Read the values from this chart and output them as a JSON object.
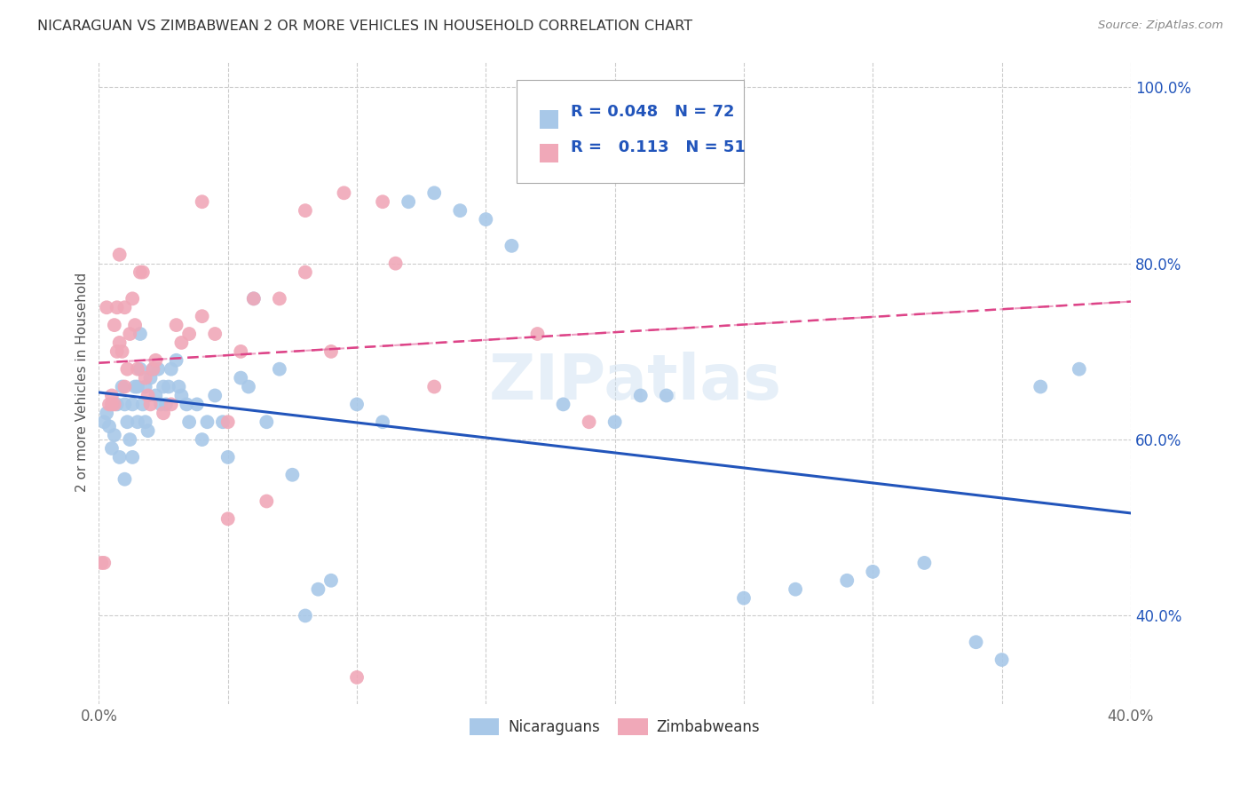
{
  "title": "NICARAGUAN VS ZIMBABWEAN 2 OR MORE VEHICLES IN HOUSEHOLD CORRELATION CHART",
  "source": "Source: ZipAtlas.com",
  "ylabel": "2 or more Vehicles in Household",
  "xlim": [
    0.0,
    0.4
  ],
  "ylim": [
    0.3,
    1.03
  ],
  "xtick_positions": [
    0.0,
    0.05,
    0.1,
    0.15,
    0.2,
    0.25,
    0.3,
    0.35,
    0.4
  ],
  "xtick_labels": [
    "0.0%",
    "",
    "",
    "",
    "",
    "",
    "",
    "",
    "40.0%"
  ],
  "ytick_positions": [
    0.4,
    0.6,
    0.8,
    1.0
  ],
  "ytick_labels": [
    "40.0%",
    "60.0%",
    "80.0%",
    "100.0%"
  ],
  "blue_R": 0.048,
  "blue_N": 72,
  "pink_R": 0.113,
  "pink_N": 51,
  "blue_color": "#a8c8e8",
  "pink_color": "#f0a8b8",
  "blue_line_color": "#2255bb",
  "pink_line_color": "#dd4488",
  "legend_text_color": "#2255bb",
  "watermark": "ZIPatlas",
  "blue_x": [
    0.002,
    0.003,
    0.004,
    0.005,
    0.006,
    0.007,
    0.008,
    0.009,
    0.01,
    0.01,
    0.011,
    0.012,
    0.013,
    0.013,
    0.014,
    0.015,
    0.015,
    0.016,
    0.016,
    0.017,
    0.018,
    0.018,
    0.019,
    0.02,
    0.021,
    0.022,
    0.023,
    0.024,
    0.025,
    0.026,
    0.027,
    0.028,
    0.03,
    0.031,
    0.032,
    0.034,
    0.035,
    0.038,
    0.04,
    0.042,
    0.045,
    0.048,
    0.05,
    0.055,
    0.058,
    0.06,
    0.065,
    0.07,
    0.075,
    0.08,
    0.085,
    0.09,
    0.1,
    0.11,
    0.12,
    0.13,
    0.14,
    0.15,
    0.16,
    0.18,
    0.2,
    0.21,
    0.22,
    0.25,
    0.27,
    0.29,
    0.3,
    0.32,
    0.34,
    0.35,
    0.365,
    0.38
  ],
  "blue_y": [
    0.62,
    0.63,
    0.615,
    0.59,
    0.605,
    0.64,
    0.58,
    0.66,
    0.64,
    0.555,
    0.62,
    0.6,
    0.58,
    0.64,
    0.66,
    0.66,
    0.62,
    0.68,
    0.72,
    0.64,
    0.66,
    0.62,
    0.61,
    0.67,
    0.68,
    0.65,
    0.68,
    0.64,
    0.66,
    0.64,
    0.66,
    0.68,
    0.69,
    0.66,
    0.65,
    0.64,
    0.62,
    0.64,
    0.6,
    0.62,
    0.65,
    0.62,
    0.58,
    0.67,
    0.66,
    0.76,
    0.62,
    0.68,
    0.56,
    0.4,
    0.43,
    0.44,
    0.64,
    0.62,
    0.87,
    0.88,
    0.86,
    0.85,
    0.82,
    0.64,
    0.62,
    0.65,
    0.65,
    0.42,
    0.43,
    0.44,
    0.45,
    0.46,
    0.37,
    0.35,
    0.66,
    0.68
  ],
  "pink_x": [
    0.001,
    0.002,
    0.003,
    0.004,
    0.005,
    0.005,
    0.006,
    0.006,
    0.007,
    0.007,
    0.008,
    0.008,
    0.009,
    0.01,
    0.01,
    0.011,
    0.012,
    0.013,
    0.014,
    0.015,
    0.016,
    0.017,
    0.018,
    0.019,
    0.02,
    0.021,
    0.022,
    0.025,
    0.028,
    0.03,
    0.032,
    0.035,
    0.04,
    0.045,
    0.05,
    0.055,
    0.06,
    0.065,
    0.07,
    0.08,
    0.09,
    0.1,
    0.115,
    0.13,
    0.17,
    0.19,
    0.08,
    0.095,
    0.11,
    0.04,
    0.05
  ],
  "pink_y": [
    0.46,
    0.46,
    0.75,
    0.64,
    0.65,
    0.64,
    0.64,
    0.73,
    0.7,
    0.75,
    0.71,
    0.81,
    0.7,
    0.66,
    0.75,
    0.68,
    0.72,
    0.76,
    0.73,
    0.68,
    0.79,
    0.79,
    0.67,
    0.65,
    0.64,
    0.68,
    0.69,
    0.63,
    0.64,
    0.73,
    0.71,
    0.72,
    0.74,
    0.72,
    0.62,
    0.7,
    0.76,
    0.53,
    0.76,
    0.79,
    0.7,
    0.33,
    0.8,
    0.66,
    0.72,
    0.62,
    0.86,
    0.88,
    0.87,
    0.87,
    0.51
  ]
}
